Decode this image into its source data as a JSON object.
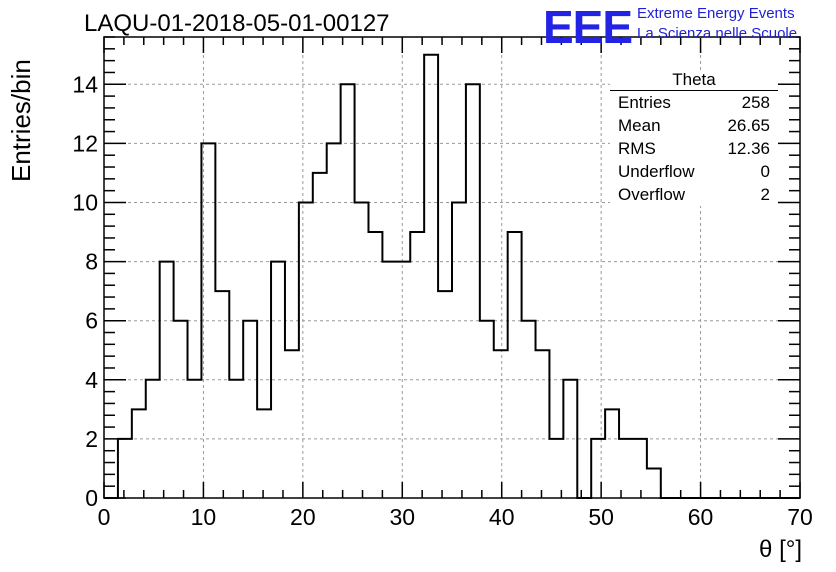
{
  "run_title": "LAQU-01-2018-05-01-00127",
  "logo": {
    "mark": "EEE",
    "line1": "Extreme Energy Events",
    "line2": "La Scienza nelle Scuole",
    "color": "#2323e6"
  },
  "stats_box": {
    "title": "Theta",
    "rows": [
      {
        "label": "Entries",
        "value": "258"
      },
      {
        "label": "Mean",
        "value": "26.65"
      },
      {
        "label": "RMS",
        "value": "12.36"
      },
      {
        "label": "Underflow",
        "value": "0"
      },
      {
        "label": "Overflow",
        "value": "2"
      }
    ]
  },
  "chart_data": {
    "type": "histogram",
    "title": "LAQU-01-2018-05-01-00127",
    "xlabel": "θ [°]",
    "ylabel": "Entries/bin",
    "xlim": [
      0,
      70
    ],
    "ylim": [
      0,
      15.6
    ],
    "bin_width": 1.4,
    "bin_start": 0,
    "x_ticks": [
      0,
      10,
      20,
      30,
      40,
      50,
      60,
      70
    ],
    "y_ticks": [
      0,
      2,
      4,
      6,
      8,
      10,
      12,
      14
    ],
    "grid": true,
    "line_color": "#000000",
    "values": [
      0,
      2,
      3,
      4,
      8,
      6,
      4,
      12,
      7,
      4,
      6,
      3,
      8,
      5,
      10,
      11,
      12,
      14,
      10,
      9,
      8,
      8,
      9,
      15,
      7,
      10,
      14,
      6,
      5,
      9,
      6,
      5,
      2,
      4,
      0,
      2,
      3,
      2,
      2,
      1,
      0,
      0,
      0,
      0,
      0,
      0,
      0,
      0,
      0,
      0
    ]
  }
}
